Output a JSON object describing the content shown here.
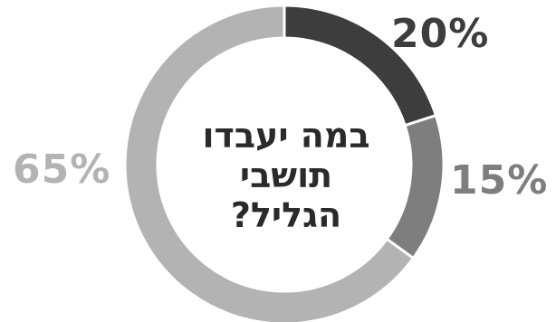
{
  "chart_data": {
    "type": "pie",
    "title": "במה יעבדו תושבי הגליל?",
    "title_lines": [
      "במה יעבדו",
      "תושבי",
      "הגליל?"
    ],
    "labels": [
      "20%",
      "15%",
      "65%"
    ],
    "values": [
      20,
      15,
      65
    ],
    "colors": [
      "#3d3d3d",
      "#7e7e7e",
      "#b3b3b3"
    ],
    "start": "12 o'clock",
    "direction": "clockwise",
    "donut": true
  }
}
